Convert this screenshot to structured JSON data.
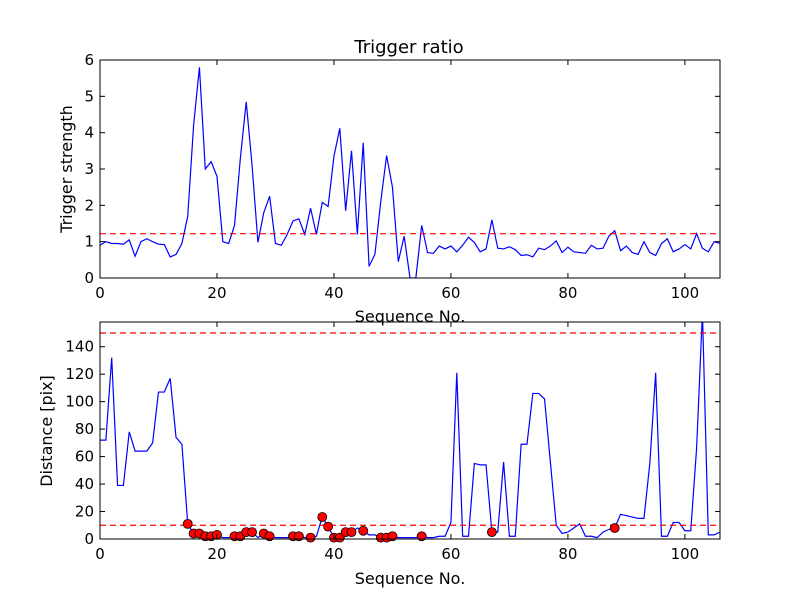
{
  "chart_data": [
    {
      "type": "line",
      "title": "Trigger ratio",
      "xlabel": "Sequence No.",
      "ylabel": "Trigger strength",
      "xlim": [
        0,
        106
      ],
      "ylim": [
        0,
        6
      ],
      "xticks": [
        0,
        20,
        40,
        60,
        80,
        100
      ],
      "yticks": [
        0,
        1,
        2,
        3,
        4,
        5,
        6
      ],
      "series": [
        {
          "color": "#0000ff",
          "x": [
            0,
            1,
            2,
            3,
            4,
            5,
            6,
            7,
            8,
            9,
            10,
            11,
            12,
            13,
            14,
            15,
            16,
            17,
            18,
            19,
            20,
            21,
            22,
            23,
            24,
            25,
            26,
            27,
            28,
            29,
            30,
            31,
            32,
            33,
            34,
            35,
            36,
            37,
            38,
            39,
            40,
            41,
            42,
            43,
            44,
            45,
            46,
            47,
            48,
            49,
            50,
            51,
            52,
            53,
            54,
            55,
            56,
            57,
            58,
            59,
            60,
            61,
            62,
            63,
            64,
            65,
            66,
            67,
            68,
            69,
            70,
            71,
            72,
            73,
            74,
            75,
            76,
            77,
            78,
            79,
            80,
            81,
            82,
            83,
            84,
            85,
            86,
            87,
            88,
            89,
            90,
            91,
            92,
            93,
            94,
            95,
            96,
            97,
            98,
            99,
            100,
            101,
            102,
            103,
            104,
            105,
            106
          ],
          "y": [
            0.9,
            1.0,
            0.95,
            0.95,
            0.93,
            1.05,
            0.6,
            1.0,
            1.08,
            1.0,
            0.93,
            0.92,
            0.58,
            0.65,
            0.95,
            1.7,
            4.2,
            5.8,
            3.0,
            3.2,
            2.8,
            1.0,
            0.95,
            1.45,
            3.3,
            4.85,
            3.1,
            0.98,
            1.8,
            2.25,
            0.95,
            0.9,
            1.2,
            1.57,
            1.63,
            1.2,
            1.92,
            1.2,
            2.08,
            1.97,
            3.35,
            4.12,
            1.85,
            3.5,
            1.2,
            3.72,
            0.32,
            0.65,
            2.1,
            3.37,
            2.5,
            0.45,
            1.15,
            0.0,
            0.0,
            1.45,
            0.7,
            0.68,
            0.88,
            0.8,
            0.88,
            0.72,
            0.9,
            1.12,
            0.98,
            0.72,
            0.8,
            1.6,
            0.82,
            0.8,
            0.86,
            0.78,
            0.62,
            0.64,
            0.58,
            0.82,
            0.78,
            0.88,
            1.02,
            0.7,
            0.85,
            0.72,
            0.7,
            0.68,
            0.9,
            0.8,
            0.82,
            1.15,
            1.3,
            0.75,
            0.88,
            0.7,
            0.65,
            1.0,
            0.7,
            0.62,
            0.95,
            1.08,
            0.72,
            0.8,
            0.92,
            0.8,
            1.22,
            0.82,
            0.72,
            1.0,
            0.95
          ]
        }
      ],
      "hlines": [
        {
          "y": 1.22,
          "color": "#ff0000",
          "style": "dashed"
        }
      ]
    },
    {
      "type": "line",
      "title": "",
      "xlabel": "Sequence No.",
      "ylabel": "Distance [pix]",
      "xlim": [
        0,
        106
      ],
      "ylim": [
        0,
        158
      ],
      "xticks": [
        0,
        20,
        40,
        60,
        80,
        100
      ],
      "yticks": [
        0,
        20,
        40,
        60,
        80,
        100,
        120,
        140
      ],
      "series": [
        {
          "color": "#0000ff",
          "x": [
            0,
            1,
            2,
            3,
            4,
            5,
            6,
            7,
            8,
            9,
            10,
            11,
            12,
            13,
            14,
            15,
            16,
            17,
            18,
            19,
            20,
            21,
            22,
            23,
            24,
            25,
            26,
            27,
            28,
            29,
            30,
            31,
            32,
            33,
            34,
            35,
            36,
            37,
            38,
            39,
            40,
            41,
            42,
            43,
            44,
            45,
            46,
            47,
            48,
            49,
            50,
            51,
            52,
            53,
            54,
            55,
            56,
            57,
            58,
            59,
            60,
            61,
            62,
            63,
            64,
            65,
            66,
            67,
            68,
            69,
            70,
            71,
            72,
            73,
            74,
            75,
            76,
            77,
            78,
            79,
            80,
            81,
            82,
            83,
            84,
            85,
            86,
            87,
            88,
            89,
            90,
            91,
            92,
            93,
            94,
            95,
            96,
            97,
            98,
            99,
            100,
            101,
            102,
            103,
            104,
            105,
            106
          ],
          "y": [
            72,
            72,
            132,
            39,
            39,
            78,
            64,
            64,
            64,
            70,
            107,
            107,
            117,
            74,
            69,
            11,
            4,
            4,
            2,
            2,
            3,
            1,
            1,
            2,
            2,
            5,
            5,
            1,
            4,
            2,
            1,
            1,
            1,
            2,
            2,
            1,
            1,
            2,
            16,
            9,
            1,
            1,
            5,
            5,
            8,
            6,
            3,
            3,
            1,
            1,
            2,
            1,
            1,
            1,
            1,
            2,
            1,
            1,
            2,
            2,
            12,
            121,
            2,
            2,
            55,
            54,
            54,
            5,
            5,
            56,
            2,
            2,
            69,
            69,
            106,
            106,
            102,
            56,
            10,
            4,
            5,
            8,
            11,
            2,
            2,
            1,
            5,
            7,
            8,
            18,
            17,
            16,
            15,
            15,
            55,
            121,
            2,
            2,
            12,
            12,
            6,
            6,
            66,
            165,
            3,
            3,
            5
          ]
        }
      ],
      "markers": {
        "color": "#ff0000",
        "x": [
          15,
          16,
          17,
          18,
          19,
          20,
          23,
          24,
          25,
          26,
          28,
          29,
          33,
          34,
          36,
          38,
          39,
          40,
          41,
          42,
          43,
          45,
          48,
          49,
          50,
          55,
          67,
          88
        ],
        "y": [
          11,
          4,
          4,
          2,
          2,
          3,
          2,
          2,
          5,
          5,
          4,
          2,
          2,
          2,
          1,
          16,
          9,
          1,
          1,
          5,
          5,
          6,
          1,
          1,
          2,
          2,
          5,
          8
        ]
      },
      "hlines": [
        {
          "y": 10,
          "color": "#ff0000",
          "style": "dashed"
        },
        {
          "y": 150,
          "color": "#ff0000",
          "style": "dashed"
        }
      ]
    }
  ]
}
